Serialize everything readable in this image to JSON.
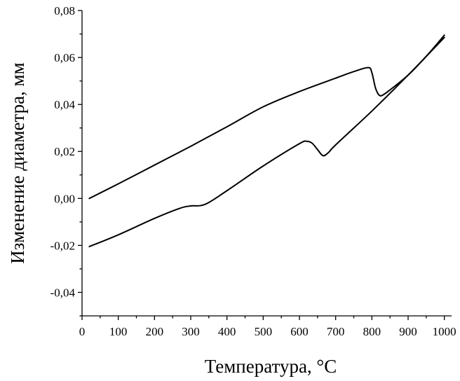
{
  "chart_data": {
    "type": "line",
    "title": "",
    "xlabel": "Температура, °C",
    "ylabel": "Изменение диаметра, мм",
    "xlim": [
      0,
      1020
    ],
    "ylim": [
      -0.05,
      0.08
    ],
    "x_ticks": [
      0,
      100,
      200,
      300,
      400,
      500,
      600,
      700,
      800,
      900,
      1000
    ],
    "x_tick_labels": [
      "0",
      "100",
      "200",
      "300",
      "400",
      "500",
      "600",
      "700",
      "800",
      "900",
      "1000"
    ],
    "y_ticks": [
      -0.04,
      -0.02,
      0.0,
      0.02,
      0.04,
      0.06,
      0.08
    ],
    "y_tick_labels": [
      "-0,04",
      "-0,02",
      "0,00",
      "0,02",
      "0,04",
      "0,06",
      "0,08"
    ],
    "y_minor_ticks": [
      -0.05,
      -0.03,
      -0.01,
      0.01,
      0.03,
      0.05,
      0.07
    ],
    "grid": false,
    "legend": "none",
    "line_color": "#000000",
    "series": [
      {
        "x": [
          20,
          100,
          200,
          300,
          400,
          500,
          600,
          700,
          750,
          790,
          800,
          810,
          820,
          830,
          850,
          900,
          950,
          1000
        ],
        "y": [
          0.0,
          0.0062,
          0.0142,
          0.0222,
          0.0305,
          0.039,
          0.0455,
          0.0512,
          0.054,
          0.0557,
          0.0535,
          0.047,
          0.044,
          0.044,
          0.0462,
          0.0525,
          0.0605,
          0.0695
        ]
      },
      {
        "x": [
          20,
          100,
          200,
          270,
          300,
          340,
          400,
          500,
          600,
          620,
          635,
          650,
          665,
          680,
          700,
          800,
          900,
          1000
        ],
        "y": [
          -0.0205,
          -0.0155,
          -0.0085,
          -0.0042,
          -0.0032,
          -0.0025,
          0.0033,
          0.0138,
          0.0233,
          0.0243,
          0.0235,
          0.0208,
          0.0182,
          0.0195,
          0.0228,
          0.0372,
          0.0525,
          0.0685
        ]
      }
    ]
  }
}
